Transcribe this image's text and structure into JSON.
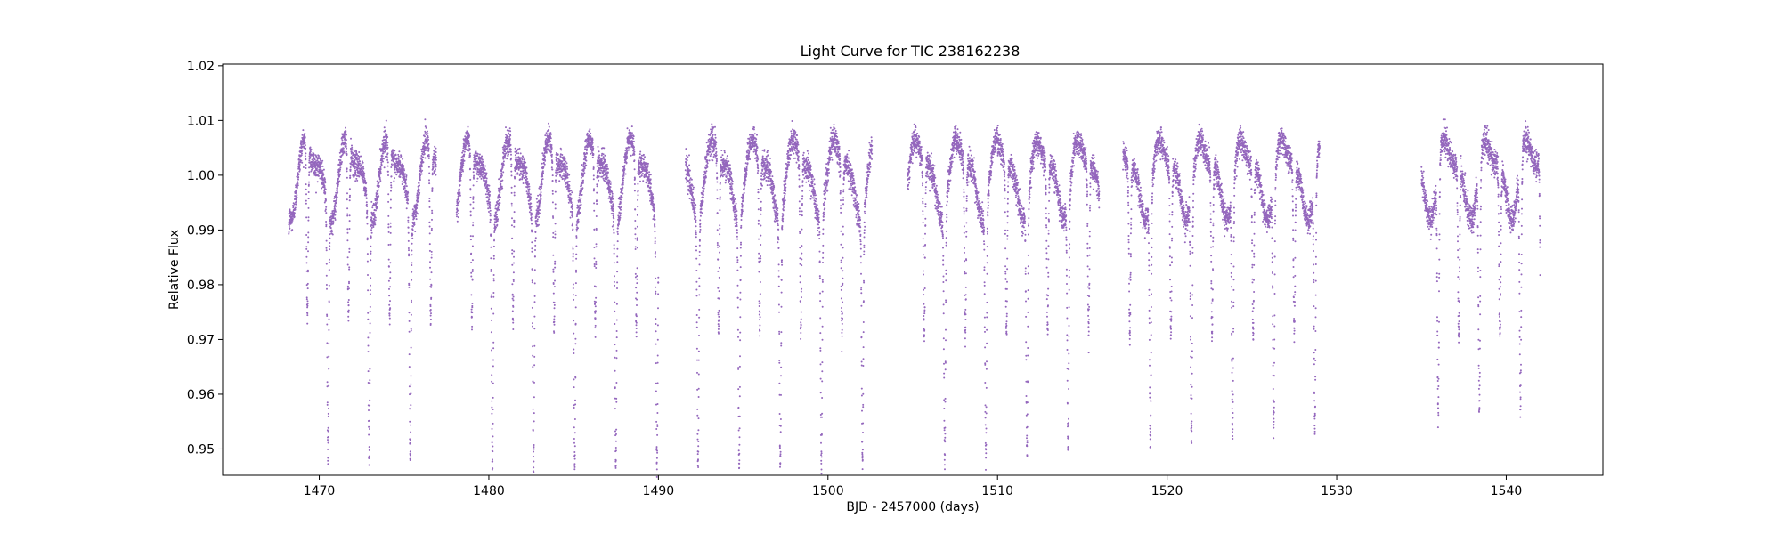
{
  "chart_data": {
    "type": "scatter",
    "title": "Light Curve for TIC 238162238",
    "xlabel": "BJD - 2457000 (days)",
    "ylabel": "Relative Flux",
    "xlim": [
      1464.3,
      1545.7
    ],
    "ylim": [
      0.9452,
      1.0203
    ],
    "xticks": [
      1470,
      1480,
      1490,
      1500,
      1510,
      1520,
      1530,
      1540
    ],
    "yticks": [
      0.95,
      0.96,
      0.97,
      0.98,
      0.99,
      1.0,
      1.01,
      1.02
    ],
    "ytick_labels": [
      "0.95",
      "0.96",
      "0.97",
      "0.98",
      "0.99",
      "1.00",
      "1.01",
      "1.02"
    ],
    "grid": false,
    "legend": "none",
    "series": [
      {
        "color": "#9467bd",
        "marker": "point",
        "segments": [
          {
            "start": 1468.2,
            "end": 1476.9
          },
          {
            "start": 1478.1,
            "end": 1490.0
          },
          {
            "start": 1491.6,
            "end": 1502.6
          },
          {
            "start": 1504.7,
            "end": 1516.0
          },
          {
            "start": 1517.4,
            "end": 1529.0
          },
          {
            "start": 1535.0,
            "end": 1542.0
          }
        ],
        "baseline_flux": 1.0,
        "rotation_period_days": 2.4,
        "rotation_amplitude": 0.0075,
        "eclipse_period_days": 1.2125,
        "eclipse_reference_time": 1469.3,
        "eclipse_depths": [
          0.031,
          0.045
        ],
        "eclipse_width_days": 0.12,
        "noise_sigma": 0.0012
      }
    ]
  }
}
